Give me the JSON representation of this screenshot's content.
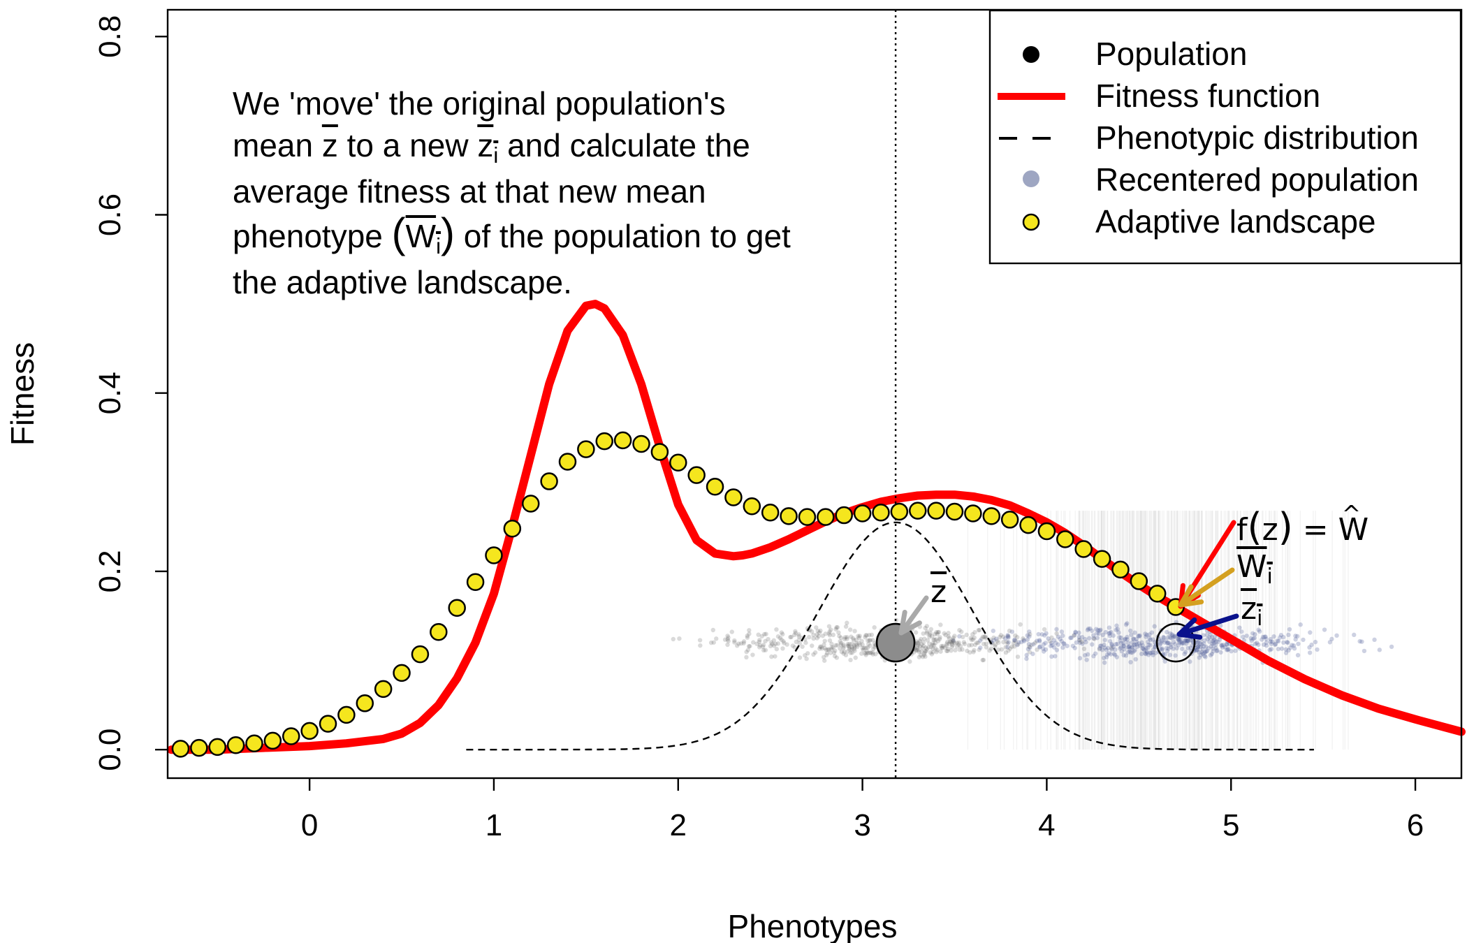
{
  "chart_data": {
    "type": "line",
    "xlabel": "Phenotypes",
    "ylabel": "Fitness",
    "xlim": [
      -0.77,
      6.25
    ],
    "ylim": [
      -0.032,
      0.83
    ],
    "x_ticks": [
      "0",
      "1",
      "2",
      "3",
      "4",
      "5",
      "6"
    ],
    "y_ticks": [
      "0.0",
      "0.2",
      "0.4",
      "0.6",
      "0.8"
    ],
    "legend": {
      "placement": "top-right",
      "entries": [
        "Population",
        "Fitness function",
        "Phenotypic distribution",
        "Recentered population",
        "Adaptive landscape"
      ]
    },
    "annotation_lines": [
      "We 'move' the original population's",
      "mean",
      "to a new",
      "and calculate the",
      "average fitness at that new mean",
      "phenotype",
      "of the population to get",
      "the adaptive landscape."
    ],
    "symbols": {
      "z": "z",
      "i": "i",
      "W": "W",
      "f_of_z": "f",
      "equals": "=",
      "open_paren": "(",
      "close_paren": ")"
    },
    "population_mean": 3.18,
    "recentered_mean": 4.7,
    "series": [
      {
        "name": "Fitness function",
        "kind": "curve",
        "x": [
          -0.75,
          -0.5,
          -0.25,
          0,
          0.2,
          0.4,
          0.5,
          0.6,
          0.7,
          0.8,
          0.9,
          1.0,
          1.1,
          1.2,
          1.3,
          1.4,
          1.5,
          1.55,
          1.6,
          1.7,
          1.8,
          1.9,
          2.0,
          2.1,
          2.2,
          2.3,
          2.35,
          2.4,
          2.5,
          2.6,
          2.7,
          2.8,
          2.9,
          3.0,
          3.1,
          3.2,
          3.3,
          3.4,
          3.5,
          3.6,
          3.7,
          3.8,
          3.9,
          4.0,
          4.1,
          4.2,
          4.3,
          4.4,
          4.5,
          4.6,
          4.7,
          4.8,
          4.9,
          5.0,
          5.2,
          5.4,
          5.6,
          5.8,
          6.0,
          6.25
        ],
        "y": [
          0.0,
          0.0,
          0.002,
          0.004,
          0.007,
          0.012,
          0.018,
          0.03,
          0.05,
          0.08,
          0.12,
          0.175,
          0.25,
          0.33,
          0.41,
          0.47,
          0.498,
          0.5,
          0.495,
          0.465,
          0.41,
          0.34,
          0.275,
          0.235,
          0.22,
          0.217,
          0.218,
          0.22,
          0.227,
          0.236,
          0.246,
          0.256,
          0.265,
          0.272,
          0.278,
          0.282,
          0.285,
          0.286,
          0.286,
          0.284,
          0.28,
          0.274,
          0.265,
          0.255,
          0.243,
          0.229,
          0.214,
          0.199,
          0.185,
          0.172,
          0.16,
          0.148,
          0.136,
          0.124,
          0.1,
          0.079,
          0.061,
          0.046,
          0.034,
          0.02
        ]
      },
      {
        "name": "Adaptive landscape",
        "kind": "points",
        "x": [
          -0.7,
          -0.6,
          -0.5,
          -0.4,
          -0.3,
          -0.2,
          -0.1,
          0.0,
          0.1,
          0.2,
          0.3,
          0.4,
          0.5,
          0.6,
          0.7,
          0.8,
          0.9,
          1.0,
          1.1,
          1.2,
          1.3,
          1.4,
          1.5,
          1.6,
          1.7,
          1.8,
          1.9,
          2.0,
          2.1,
          2.2,
          2.3,
          2.4,
          2.5,
          2.6,
          2.7,
          2.8,
          2.9,
          3.0,
          3.1,
          3.2,
          3.3,
          3.4,
          3.5,
          3.6,
          3.7,
          3.8,
          3.9,
          4.0,
          4.1,
          4.2,
          4.3,
          4.4,
          4.5,
          4.6,
          4.7
        ],
        "y": [
          0.001,
          0.002,
          0.003,
          0.005,
          0.007,
          0.01,
          0.015,
          0.021,
          0.029,
          0.039,
          0.052,
          0.068,
          0.086,
          0.107,
          0.132,
          0.159,
          0.188,
          0.218,
          0.248,
          0.276,
          0.301,
          0.323,
          0.337,
          0.346,
          0.347,
          0.343,
          0.334,
          0.322,
          0.308,
          0.295,
          0.283,
          0.273,
          0.266,
          0.262,
          0.261,
          0.261,
          0.263,
          0.265,
          0.266,
          0.267,
          0.268,
          0.268,
          0.267,
          0.265,
          0.262,
          0.258,
          0.252,
          0.245,
          0.236,
          0.225,
          0.214,
          0.202,
          0.189,
          0.175,
          0.16
        ]
      },
      {
        "name": "Phenotypic distribution",
        "kind": "dashed-curve",
        "mean": 3.18,
        "sd": 0.42,
        "peak": 0.255,
        "range": [
          0.85,
          5.45
        ]
      }
    ],
    "markers": [
      {
        "name": "population mean",
        "x": 3.18,
        "y": 0.12
      },
      {
        "name": "recentered mean",
        "x": 4.7,
        "y": 0.12
      }
    ]
  },
  "colors": {
    "fitness": "#ff0000",
    "landscape_fill": "#f5e61e",
    "population_points": "#555555",
    "recentered_points": "#4a5a96",
    "arrow_zbar": "#a9a9a9",
    "arrow_wbar": "#d4a020",
    "arrow_zi": "#0a128c",
    "arrow_fz": "#ff0000"
  }
}
